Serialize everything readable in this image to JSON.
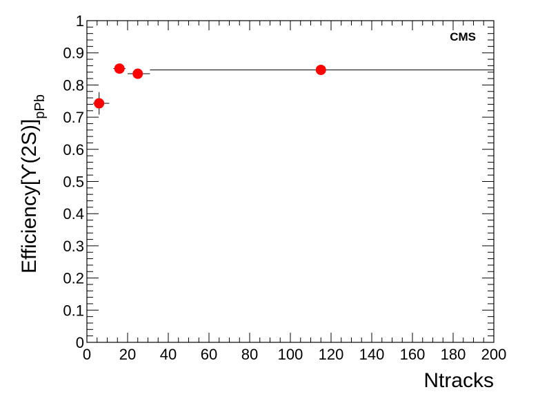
{
  "chart_data": {
    "type": "scatter",
    "title": "",
    "stamp": "CMS",
    "xlabel": "Ntracks",
    "ylabel": {
      "main": "Efficiency[ϒ(2S)]",
      "subscript": "pPb"
    },
    "xlim": [
      0,
      200
    ],
    "ylim": [
      0,
      1
    ],
    "x_ticks": [
      0,
      20,
      40,
      60,
      80,
      100,
      120,
      140,
      160,
      180,
      200
    ],
    "y_ticks": [
      0,
      0.1,
      0.2,
      0.3,
      0.4,
      0.5,
      0.6,
      0.7,
      0.8,
      0.9,
      1
    ],
    "y_tick_labels": [
      "0",
      "0.1",
      "0.2",
      "0.3",
      "0.4",
      "0.5",
      "0.6",
      "0.7",
      "0.8",
      "0.9",
      "1"
    ],
    "grid": false,
    "marker_color": "#ff0000",
    "points": [
      {
        "x": 6,
        "y": 0.743,
        "x_low": 3,
        "x_high": 11,
        "y_err": 0.035
      },
      {
        "x": 16,
        "y": 0.851,
        "x_low": 13,
        "x_high": 19,
        "y_err": 0.014
      },
      {
        "x": 25,
        "y": 0.835,
        "x_low": 20,
        "x_high": 31,
        "y_err": 0.012
      },
      {
        "x": 115,
        "y": 0.847,
        "x_low": 31,
        "x_high": 200,
        "y_err": 0.008
      }
    ]
  }
}
